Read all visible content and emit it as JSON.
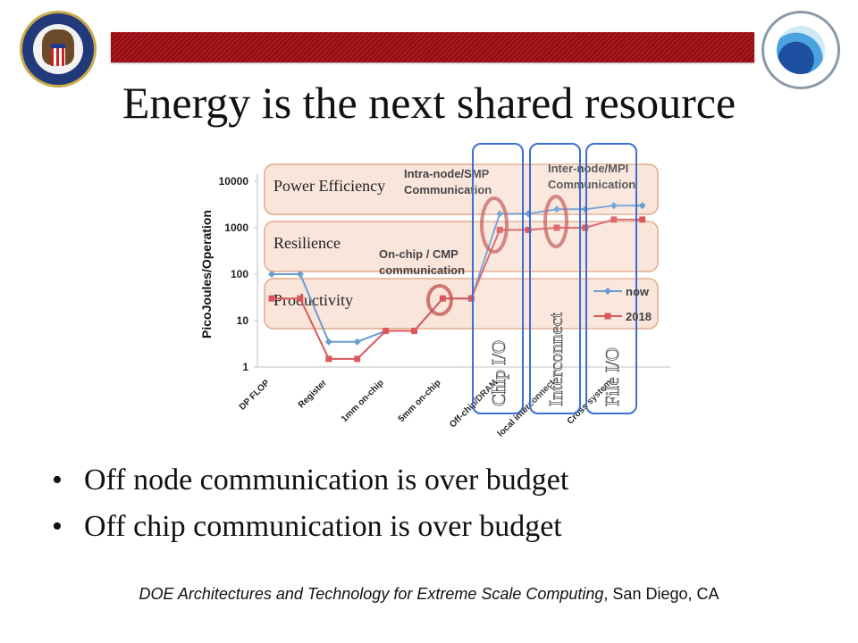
{
  "slide": {
    "title": "Energy is the next shared resource",
    "bullets": [
      {
        "text": "Off node communication is over budget ",
        "faces": ""
      },
      {
        "text": "Off chip communication is over budget ",
        "faces": " "
      }
    ],
    "footer_italic": "DOE Architectures and Technology for Extreme Scale Computing",
    "footer_rest": ", San Diego, CA",
    "colors": {
      "banner": "#b0161e",
      "band_fill": "#f8dccf",
      "band_edge": "#e3a98a",
      "now": "#6a9ccf",
      "y2018": "#d9595c",
      "callout": "#c0504d",
      "column_edge": "#3b6fd0"
    }
  },
  "overlays": {
    "bands": [
      "Power Efficiency",
      "Resilience",
      "Productivity"
    ],
    "columns": [
      "Chip I/O",
      "Interconnect",
      "File I/O"
    ],
    "annotations": [
      "Intra-node/SMP Communication",
      "Inter-node/MPI Communication",
      "On-chip / CMP communication"
    ]
  },
  "chart_data": {
    "type": "line",
    "ylabel": "PicoJoules/Operation",
    "xlabel": "",
    "y_scale": "log",
    "ylim": [
      1,
      10000
    ],
    "y_ticks": [
      "1",
      "10",
      "100",
      "1000",
      "10000"
    ],
    "categories": [
      "DP FLOP",
      "",
      "Register",
      "",
      "1mm on-chip",
      "",
      "5mm on-chip",
      "",
      "Off-chip/DRAM",
      "",
      "local interconnect",
      "",
      "Cross system",
      ""
    ],
    "series": [
      {
        "name": "now",
        "color": "#6a9ccf",
        "values": [
          100,
          100,
          3.5,
          3.5,
          6,
          6,
          30,
          30,
          2000,
          2000,
          2500,
          2500,
          3000,
          3000
        ]
      },
      {
        "name": "2018",
        "color": "#d9595c",
        "values": [
          30,
          30,
          1.5,
          1.5,
          6,
          6,
          30,
          30,
          900,
          900,
          1000,
          1000,
          1500,
          1500
        ]
      }
    ],
    "legend": "right"
  }
}
